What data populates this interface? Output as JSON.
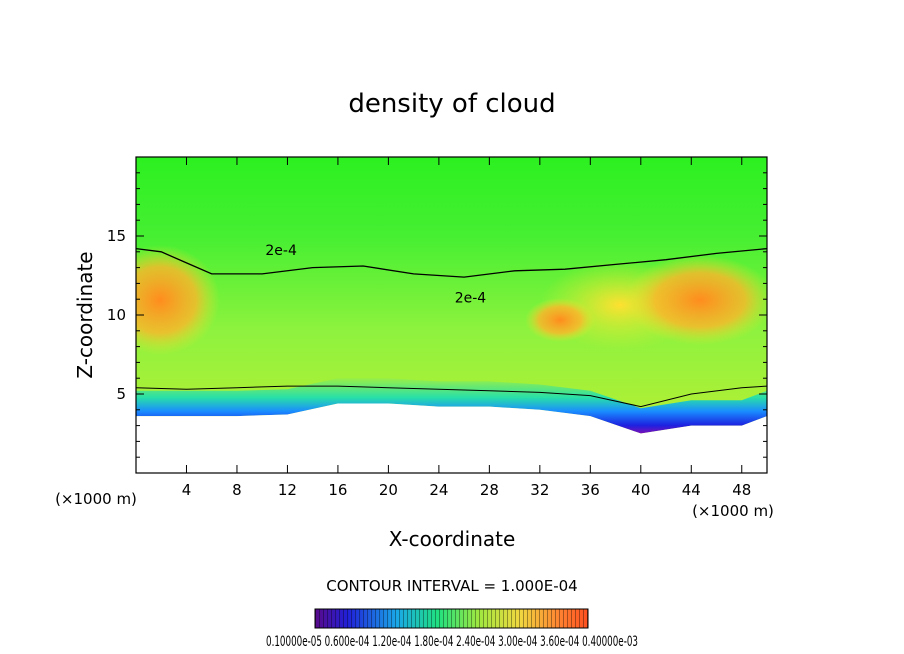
{
  "chart_data": {
    "type": "heatmap",
    "title": "density of cloud",
    "xlabel": "X-coordinate",
    "ylabel": "Z-coordinate",
    "x_unit": "(×1000 m)",
    "z_unit": "(×1000 m)",
    "xlim": [
      0,
      50
    ],
    "ylim": [
      0,
      20
    ],
    "x_ticks": [
      4,
      8,
      12,
      16,
      20,
      24,
      28,
      32,
      36,
      40,
      44,
      48
    ],
    "y_ticks": [
      5,
      10,
      15
    ],
    "contour_interval_label": "CONTOUR INTERVAL = 1.000E-04",
    "contour_labels": [
      {
        "text": "2e-4",
        "x": 11.5,
        "z": 13.8
      },
      {
        "text": "2e-4",
        "x": 26.5,
        "z": 10.8
      }
    ],
    "cloud_base_profile": {
      "x": [
        0,
        4,
        8,
        12,
        16,
        20,
        24,
        28,
        32,
        36,
        40,
        44,
        48,
        50
      ],
      "z": [
        3.6,
        3.6,
        3.6,
        3.7,
        4.4,
        4.4,
        4.2,
        4.2,
        4.0,
        3.6,
        2.5,
        3.0,
        3.0,
        3.6
      ]
    },
    "contour_upper_2e4": {
      "x": [
        0,
        2,
        4,
        6,
        10,
        14,
        18,
        22,
        26,
        30,
        34,
        38,
        42,
        46,
        50
      ],
      "z": [
        14.2,
        14.0,
        13.3,
        12.6,
        12.6,
        13.0,
        13.1,
        12.6,
        12.4,
        12.8,
        12.9,
        13.2,
        13.5,
        13.9,
        14.2
      ]
    },
    "contour_lower_1e4": {
      "x": [
        0,
        4,
        8,
        12,
        16,
        20,
        24,
        28,
        32,
        36,
        40,
        44,
        48,
        50
      ],
      "z": [
        5.4,
        5.3,
        5.4,
        5.5,
        5.5,
        5.4,
        5.3,
        5.2,
        5.1,
        4.9,
        4.2,
        5.0,
        5.4,
        5.5
      ]
    },
    "colorbar": {
      "tick_labels": "0.10000e-05 0.600e-04 1.20e-04 1.80e-04 2.40e-04 3.00e-04 3.60e-04 0.40000e-03",
      "min": 1e-06,
      "max": 0.0004
    }
  }
}
